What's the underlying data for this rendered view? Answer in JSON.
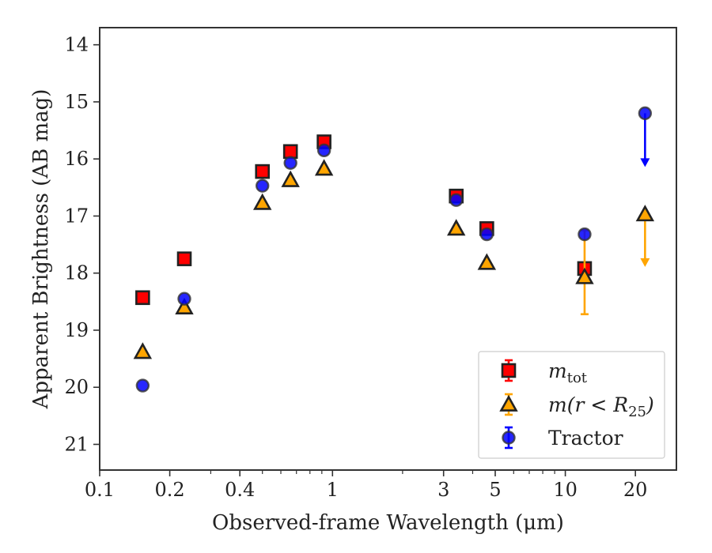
{
  "chart_data": {
    "type": "scatter",
    "title": "",
    "xlabel": "Observed-frame Wavelength (μm)",
    "ylabel": "Apparent Brightness (AB mag)",
    "xscale": "log",
    "xlim": [
      0.1,
      30
    ],
    "ylim": [
      21.45,
      13.7
    ],
    "y_inverted": true,
    "x_tick_values": [
      0.1,
      0.2,
      0.4,
      1,
      3,
      5,
      10,
      20
    ],
    "x_tick_labels": [
      "0.1",
      "0.2",
      "0.4",
      "1",
      "3",
      "5",
      "10",
      "20"
    ],
    "y_tick_values": [
      14,
      15,
      16,
      17,
      18,
      19,
      20,
      21
    ],
    "y_tick_labels": [
      "14",
      "15",
      "16",
      "17",
      "18",
      "19",
      "20",
      "21"
    ],
    "grid": false,
    "legend_position": "lower-right",
    "series": [
      {
        "name": "m_tot",
        "marker": "square",
        "color": "#ff0000",
        "error_color": "#ff0000",
        "points": [
          {
            "x": 0.153,
            "y": 18.43
          },
          {
            "x": 0.231,
            "y": 17.75
          },
          {
            "x": 0.5,
            "y": 16.22
          },
          {
            "x": 0.66,
            "y": 15.87
          },
          {
            "x": 0.92,
            "y": 15.7
          },
          {
            "x": 3.4,
            "y": 16.65
          },
          {
            "x": 4.6,
            "y": 17.22
          },
          {
            "x": 12.1,
            "y": 17.92
          }
        ]
      },
      {
        "name": "m(r < R_25)",
        "marker": "triangle",
        "color": "#ffa500",
        "error_color": "#ffa500",
        "points": [
          {
            "x": 0.153,
            "y": 19.38
          },
          {
            "x": 0.231,
            "y": 18.6
          },
          {
            "x": 0.5,
            "y": 16.77
          },
          {
            "x": 0.66,
            "y": 16.37
          },
          {
            "x": 0.92,
            "y": 16.17
          },
          {
            "x": 3.4,
            "y": 17.22
          },
          {
            "x": 4.6,
            "y": 17.82
          },
          {
            "x": 12.1,
            "y": 18.07,
            "yerr_low": 17.25,
            "yerr_high": 18.72
          },
          {
            "x": 22.0,
            "y": 16.97,
            "upper_limit": true,
            "arrow_to": 17.85
          }
        ]
      },
      {
        "name": "Tractor",
        "marker": "circle",
        "color": "#0000ff",
        "error_color": "#0000ff",
        "points": [
          {
            "x": 0.153,
            "y": 19.97
          },
          {
            "x": 0.231,
            "y": 18.45
          },
          {
            "x": 0.5,
            "y": 16.47
          },
          {
            "x": 0.66,
            "y": 16.07
          },
          {
            "x": 0.92,
            "y": 15.85
          },
          {
            "x": 3.4,
            "y": 16.72
          },
          {
            "x": 4.6,
            "y": 17.32
          },
          {
            "x": 12.1,
            "y": 17.32
          },
          {
            "x": 22.0,
            "y": 15.2,
            "upper_limit": true,
            "arrow_to": 16.1
          }
        ]
      }
    ]
  }
}
